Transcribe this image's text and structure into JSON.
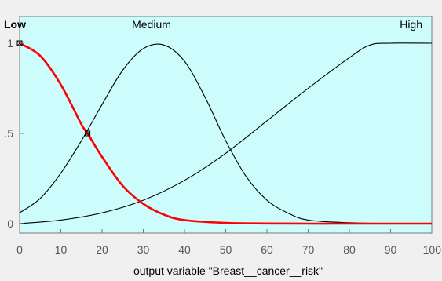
{
  "chart_data": {
    "type": "line",
    "xlabel": "output variable \"Breast__cancer__risk\"",
    "xlim": [
      0,
      100
    ],
    "ylim": [
      0,
      1
    ],
    "x_ticks": [
      0,
      10,
      20,
      30,
      40,
      50,
      60,
      70,
      80,
      90,
      100
    ],
    "x_tick_labels": [
      "0",
      "10",
      "20",
      "30",
      "40",
      "50",
      "60",
      "70",
      "80",
      "90",
      "100"
    ],
    "y_ticks": [
      0,
      0.5,
      1
    ],
    "y_tick_labels": [
      "0",
      ".5",
      "1"
    ],
    "grid": false,
    "colors": {
      "plot_bg": "#ccfdfc",
      "window_bg": "#f0f0f0",
      "highlight": "#ff0000",
      "normal": "#000000"
    },
    "series": [
      {
        "name": "Low",
        "highlighted": true,
        "label_x": 0,
        "x": [
          0,
          5,
          10,
          15,
          16.5,
          20,
          25,
          30,
          35,
          40,
          50,
          60,
          70,
          80,
          90,
          100
        ],
        "y": [
          1.0,
          0.93,
          0.77,
          0.55,
          0.5,
          0.37,
          0.21,
          0.11,
          0.05,
          0.02,
          0.004,
          0.001,
          0,
          0,
          0,
          0
        ]
      },
      {
        "name": "Medium",
        "highlighted": false,
        "label_x": 32,
        "x": [
          0,
          5,
          10,
          15,
          20,
          25,
          30,
          35,
          40,
          45,
          50,
          55,
          60,
          65,
          70,
          80,
          90,
          100
        ],
        "y": [
          0.06,
          0.14,
          0.28,
          0.46,
          0.66,
          0.85,
          0.97,
          0.99,
          0.9,
          0.7,
          0.46,
          0.26,
          0.13,
          0.06,
          0.02,
          0.005,
          0.001,
          0
        ]
      },
      {
        "name": "High",
        "highlighted": false,
        "label_x": 100,
        "x": [
          0,
          10,
          20,
          30,
          40,
          50,
          60,
          70,
          80,
          85,
          90,
          100
        ],
        "y": [
          0.0,
          0.02,
          0.06,
          0.13,
          0.24,
          0.39,
          0.57,
          0.75,
          0.92,
          0.99,
          1.0,
          1.0
        ]
      }
    ],
    "markers": [
      {
        "x": 0,
        "y": 1.0
      },
      {
        "x": 16.5,
        "y": 0.5
      }
    ]
  }
}
